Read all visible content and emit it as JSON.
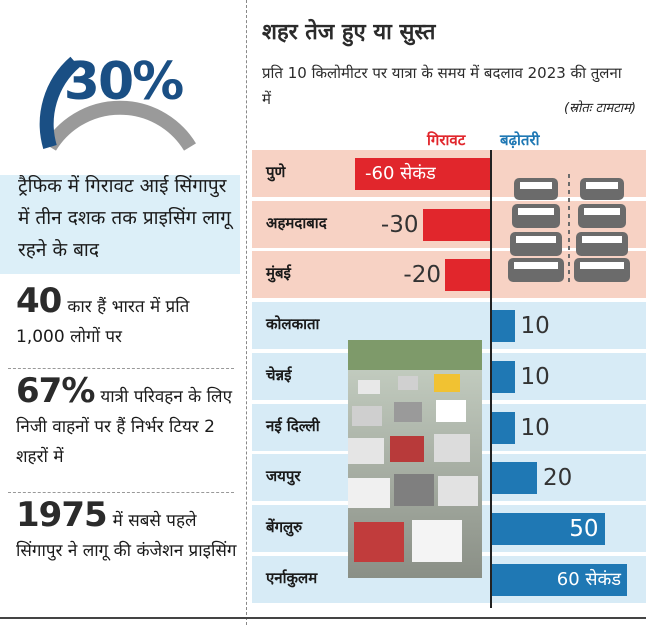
{
  "left_panel": {
    "headline_percent": "30%",
    "headline_text": "ट्रैफिक में गिरावट आई सिंगापुर में तीन दशक तक प्राइसिंग लागू रहने के बाद",
    "stats": [
      {
        "big": "40",
        "text": "कार हैं भारत में प्रति 1,000 लोगों पर"
      },
      {
        "big": "67%",
        "text": "यात्री परिवहन के लिए निजी वाहनों पर हैं निर्भर टियर 2 शहरों में"
      },
      {
        "big": "1975",
        "text": "में सबसे पहले सिंगापुर ने लागू की कंजेशन प्राइसिंग"
      }
    ]
  },
  "chart_data": {
    "type": "bar",
    "title": "शहर तेज हुए या सुस्त",
    "subtitle": "प्रति 10 किलोमीटर पर यात्रा के समय में बदलाव 2023 की तुलना में",
    "source": "(स्रोतः टामटाम)",
    "legend": {
      "decrease": "गिरावट",
      "increase": "बढ़ोतरी"
    },
    "unit_label": "सेकंड",
    "categories": [
      "पुणे",
      "अहमदाबाद",
      "मुंबई",
      "कोलकाता",
      "चेन्नई",
      "नई दिल्ली",
      "जयपुर",
      "बेंगलुरु",
      "एर्नाकुलम"
    ],
    "values": [
      -60,
      -30,
      -20,
      10,
      10,
      10,
      20,
      50,
      60
    ],
    "value_labels": [
      "-60 सेकंड",
      "-30",
      "-20",
      "10",
      "10",
      "10",
      "20",
      "50",
      "60 सेकंड"
    ],
    "xlim": [
      -60,
      60
    ]
  },
  "colors": {
    "decrease": "#e1262c",
    "increase": "#1f78b4",
    "row_negative": "#f7d2c4",
    "row_positive": "#d7ebf6",
    "accent_dark": "#1a4f84"
  }
}
